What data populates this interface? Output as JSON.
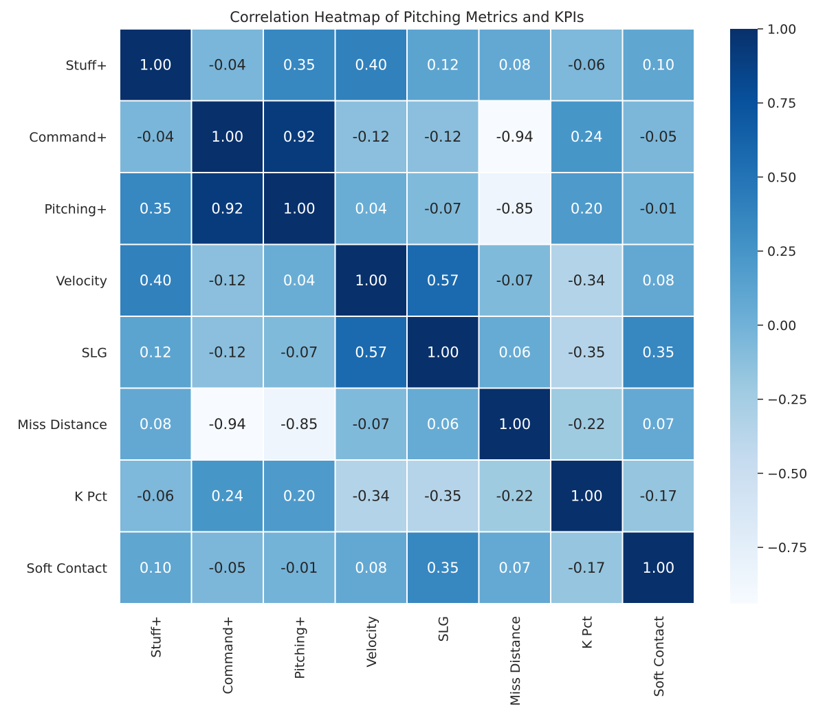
{
  "chart_data": {
    "type": "heatmap",
    "title": "Correlation Heatmap of Pitching Metrics and KPIs",
    "row_labels": [
      "Stuff+",
      "Command+",
      "Pitching+",
      "Velocity",
      "SLG",
      "Miss Distance",
      "K Pct",
      "Soft Contact"
    ],
    "col_labels": [
      "Stuff+",
      "Command+",
      "Pitching+",
      "Velocity",
      "SLG",
      "Miss Distance",
      "K Pct",
      "Soft Contact"
    ],
    "values": [
      [
        1.0,
        -0.04,
        0.35,
        0.4,
        0.12,
        0.08,
        -0.06,
        0.1
      ],
      [
        -0.04,
        1.0,
        0.92,
        -0.12,
        -0.12,
        -0.94,
        0.24,
        -0.05
      ],
      [
        0.35,
        0.92,
        1.0,
        0.04,
        -0.07,
        -0.85,
        0.2,
        -0.01
      ],
      [
        0.4,
        -0.12,
        0.04,
        1.0,
        0.57,
        -0.07,
        -0.34,
        0.08
      ],
      [
        0.12,
        -0.12,
        -0.07,
        0.57,
        1.0,
        0.06,
        -0.35,
        0.35
      ],
      [
        0.08,
        -0.94,
        -0.85,
        -0.07,
        0.06,
        1.0,
        -0.22,
        0.07
      ],
      [
        -0.06,
        0.24,
        0.2,
        -0.34,
        -0.35,
        -0.22,
        1.0,
        -0.17
      ],
      [
        0.1,
        -0.05,
        -0.01,
        0.08,
        0.35,
        0.07,
        -0.17,
        1.0
      ]
    ],
    "value_format_decimals": 2,
    "colormap": "Blues",
    "color_range": [
      -0.94,
      1.0
    ],
    "colorbar_ticks": [
      1.0,
      0.75,
      0.5,
      0.25,
      0.0,
      -0.25,
      -0.5,
      -0.75
    ],
    "colorbar_tick_labels": [
      "1.00",
      "0.75",
      "0.50",
      "0.25",
      "0.00",
      "−0.25",
      "−0.50",
      "−0.75"
    ],
    "gridline_color": "#ffffff",
    "text_color_dark": "#262626",
    "text_color_light": "#ffffff"
  }
}
